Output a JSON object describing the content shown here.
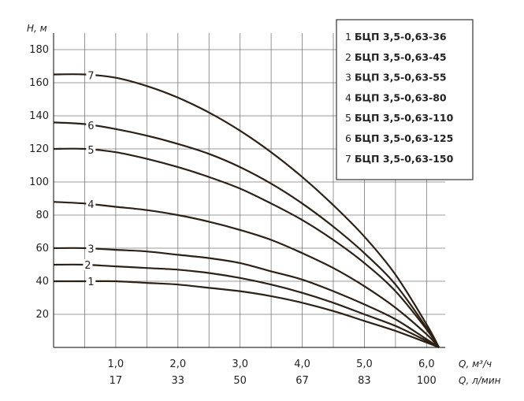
{
  "chart_data": {
    "type": "line",
    "ylabel": "H, м",
    "xlabel_primary": "Q, м³/ч",
    "xlabel_secondary": "Q, л/мин",
    "xlim": [
      0,
      6.3
    ],
    "ylim": [
      0,
      190
    ],
    "y_ticks": [
      20,
      40,
      60,
      80,
      100,
      120,
      140,
      160,
      180
    ],
    "x_ticks": [
      {
        "value": 1.0,
        "label": "1,0",
        "label_secondary": "17"
      },
      {
        "value": 2.0,
        "label": "2,0",
        "label_secondary": "33"
      },
      {
        "value": 3.0,
        "label": "3,0",
        "label_secondary": "50"
      },
      {
        "value": 4.0,
        "label": "4,0",
        "label_secondary": "67"
      },
      {
        "value": 5.0,
        "label": "5,0",
        "label_secondary": "83"
      },
      {
        "value": 6.0,
        "label": "6,0",
        "label_secondary": "100"
      }
    ],
    "grid": true,
    "legend_position": "top-right",
    "series": [
      {
        "id": "1",
        "name": "БЦП 3,5-0,63-36",
        "x": [
          0,
          0.5,
          1,
          1.5,
          2,
          2.5,
          3,
          3.5,
          4,
          4.5,
          5,
          5.5,
          6,
          6.2
        ],
        "values": [
          40,
          40,
          40,
          39,
          38,
          36,
          34,
          31,
          27,
          22,
          16,
          10,
          3,
          0
        ]
      },
      {
        "id": "2",
        "name": "БЦП 3,5-0,63-45",
        "x": [
          0,
          0.5,
          1,
          1.5,
          2,
          2.5,
          3,
          3.5,
          4,
          4.5,
          5,
          5.5,
          6,
          6.2
        ],
        "values": [
          50,
          50,
          49,
          48,
          47,
          45,
          42,
          38,
          33,
          27,
          20,
          13,
          4,
          0
        ]
      },
      {
        "id": "3",
        "name": "БЦП 3,5-0,63-55",
        "x": [
          0,
          0.5,
          1,
          1.5,
          2,
          2.5,
          3,
          3.5,
          4,
          4.5,
          5,
          5.5,
          6,
          6.2
        ],
        "values": [
          60,
          60,
          59,
          58,
          56,
          54,
          51,
          46,
          41,
          34,
          26,
          17,
          5,
          0
        ]
      },
      {
        "id": "4",
        "name": "БЦП 3,5-0,63-80",
        "x": [
          0,
          0.5,
          1,
          1.5,
          2,
          2.5,
          3,
          3.5,
          4,
          4.5,
          5,
          5.5,
          6,
          6.2
        ],
        "values": [
          88,
          87,
          85,
          83,
          80,
          76,
          71,
          65,
          57,
          48,
          37,
          24,
          8,
          0
        ]
      },
      {
        "id": "5",
        "name": "БЦП 3,5-0,63-110",
        "x": [
          0,
          0.5,
          1,
          1.5,
          2,
          2.5,
          3,
          3.5,
          4,
          4.5,
          5,
          5.5,
          6,
          6.2
        ],
        "values": [
          120,
          120,
          118,
          114,
          109,
          103,
          96,
          87,
          77,
          65,
          51,
          34,
          11,
          0
        ]
      },
      {
        "id": "6",
        "name": "БЦП 3,5-0,63-125",
        "x": [
          0,
          0.5,
          1,
          1.5,
          2,
          2.5,
          3,
          3.5,
          4,
          4.5,
          5,
          5.5,
          6,
          6.2
        ],
        "values": [
          136,
          135,
          132,
          128,
          123,
          117,
          109,
          99,
          87,
          73,
          57,
          38,
          12,
          0
        ]
      },
      {
        "id": "7",
        "name": "БЦП 3,5-0,63-150",
        "x": [
          0,
          0.5,
          1,
          1.5,
          2,
          2.5,
          3,
          3.5,
          4,
          4.5,
          5,
          5.5,
          6,
          6.2
        ],
        "values": [
          165,
          165,
          163,
          158,
          151,
          142,
          131,
          118,
          103,
          86,
          67,
          44,
          14,
          0
        ]
      }
    ]
  }
}
